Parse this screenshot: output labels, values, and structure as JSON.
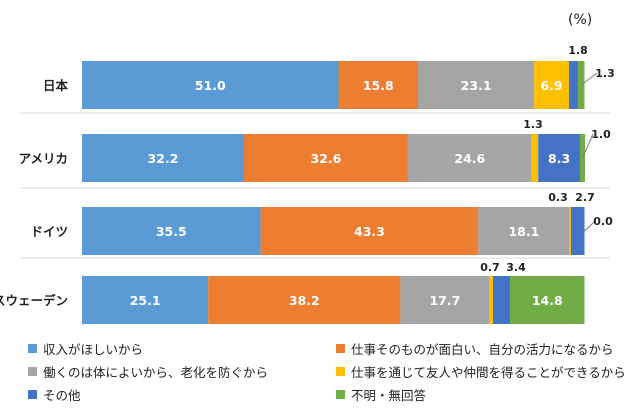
{
  "chart_data": {
    "type": "bar",
    "orientation": "horizontal",
    "stacked": true,
    "unit_label": "(%)",
    "categories": [
      "日本",
      "アメリカ",
      "ドイツ",
      "スウェーデン"
    ],
    "series": [
      {
        "name": "収入がほしいから",
        "color": "#5b9bd5",
        "values": [
          51.0,
          32.2,
          35.5,
          25.1
        ]
      },
      {
        "name": "仕事そのものが面白い、自分の活力になるから",
        "color": "#ed7d31",
        "values": [
          15.8,
          32.6,
          43.3,
          38.2
        ]
      },
      {
        "name": "働くのは体によいから、老化を防ぐから",
        "color": "#a5a5a5",
        "values": [
          23.1,
          24.6,
          18.1,
          17.7
        ]
      },
      {
        "name": "仕事を通じて友人や仲間を得ることができるから",
        "color": "#ffc000",
        "values": [
          6.9,
          1.3,
          0.3,
          0.7
        ]
      },
      {
        "name": "その他",
        "color": "#4472c4",
        "values": [
          1.8,
          8.3,
          2.7,
          3.4
        ]
      },
      {
        "name": "不明・無回答",
        "color": "#70ad47",
        "values": [
          1.3,
          1.0,
          0.0,
          14.8
        ]
      }
    ],
    "xlim": [
      0,
      100
    ],
    "grid": false,
    "legend_position": "bottom"
  }
}
